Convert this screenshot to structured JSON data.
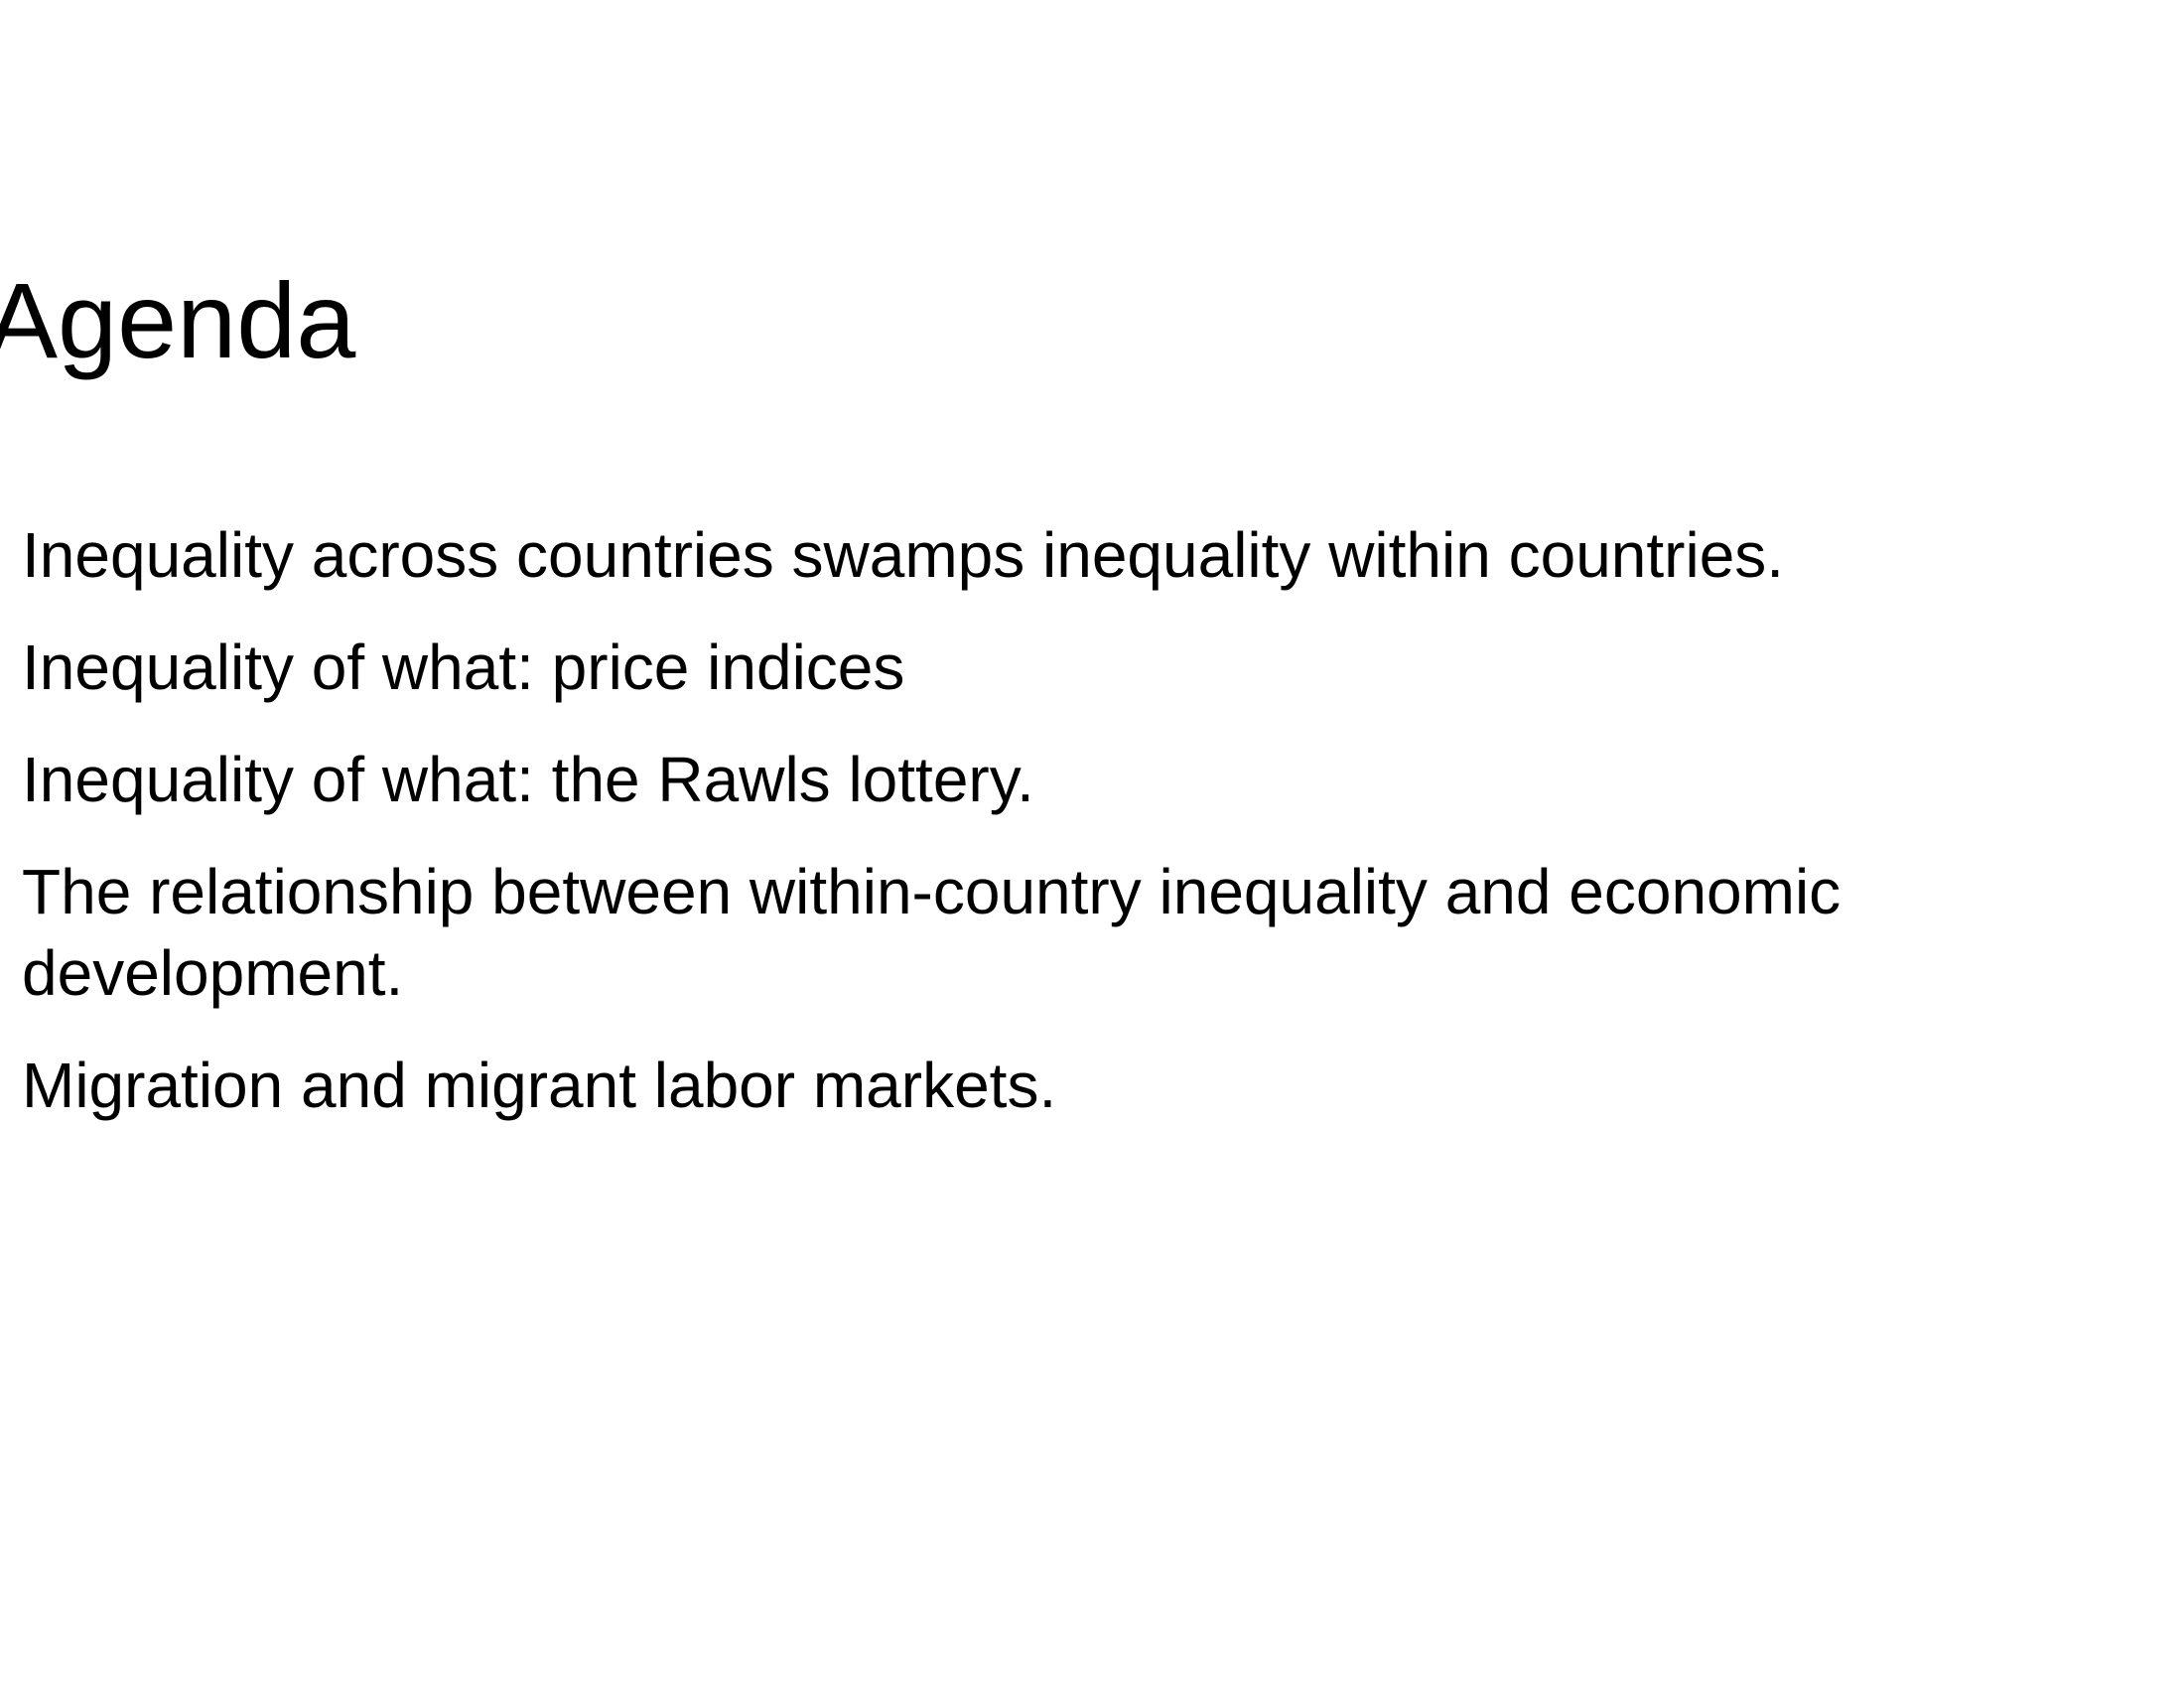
{
  "slide": {
    "title": "Agenda",
    "bullets": [
      "Inequality across countries swamps inequality within countries.",
      "Inequality of what: price indices",
      "Inequality of what: the Rawls lottery.",
      "The relationship between within-country inequality and economic development.",
      "Migration and migrant labor markets."
    ]
  }
}
